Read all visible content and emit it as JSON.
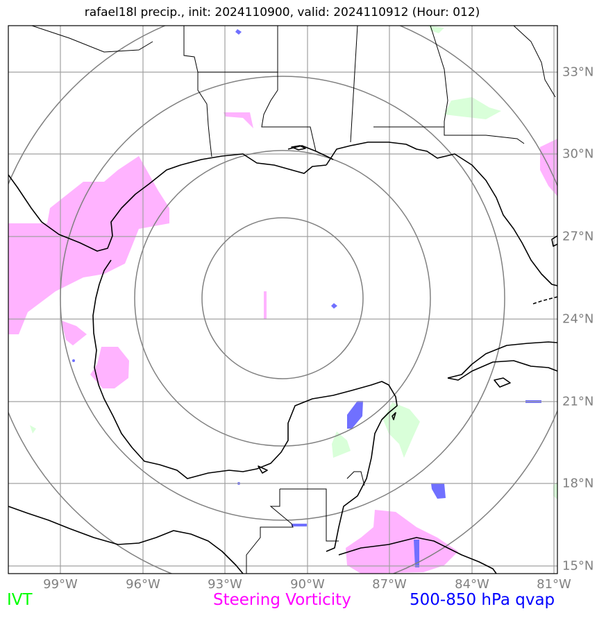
{
  "title": "rafael18l precip., init: 2024110900, valid: 2024110912 (Hour: 012)",
  "latitude_labels": [
    "33°N",
    "30°N",
    "27°N",
    "24°N",
    "21°N",
    "18°N",
    "15°N"
  ],
  "longitude_labels": [
    "99°W",
    "96°W",
    "93°W",
    "90°W",
    "87°W",
    "84°W",
    "81°W"
  ],
  "legend": {
    "ivt": {
      "label": "IVT",
      "color": "#00ff00"
    },
    "steering": {
      "label": "Steering Vorticity",
      "color": "#ff00ff"
    },
    "qvap": {
      "label": "500-850 hPa qvap",
      "color": "#0000ff"
    }
  },
  "colors": {
    "grid": "#a0a0a0",
    "range_rings": "#808080",
    "coastline": "#000000",
    "vorticity_fill": "#ffb3ff",
    "ivt_fill": "#d9ffd9",
    "qvap_fill": "#7070ff"
  }
}
